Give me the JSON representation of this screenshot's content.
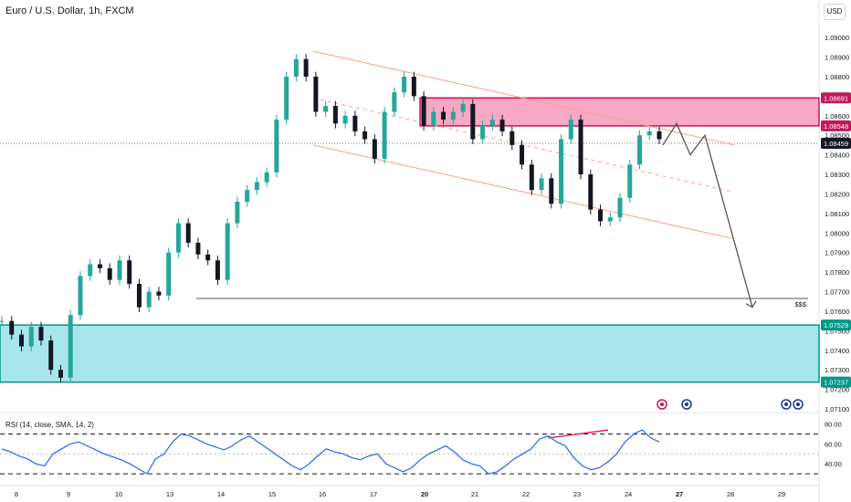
{
  "header": {
    "title": "Euro / U.S. Dollar, 1h, FXCM",
    "currency": "USD"
  },
  "indicator": {
    "label": "RSI (14, close, SMA, 14, 2)"
  },
  "annotation": {
    "liquidity_label": "$$$"
  },
  "colors": {
    "candle_up": "#26a69a",
    "candle_down": "#131722",
    "supply_zone": "#f7a8c4",
    "supply_border": "#c2185b",
    "demand_zone": "#a8e6ee",
    "demand_border": "#009688",
    "channel": "#f4a38c",
    "rsi_line": "#2962ff",
    "divergence_line": "#e91e63",
    "projection": "#555555"
  },
  "chart_data": [
    {
      "type": "candlestick",
      "title": "Euro / U.S. Dollar, 1h, FXCM",
      "ylim": [
        1.071,
        1.0908
      ],
      "y_ticks": [
        "1.09000",
        "1.08900",
        "1.08800",
        "1.08700",
        "1.08600",
        "1.08500",
        "1.08400",
        "1.08300",
        "1.08200",
        "1.08100",
        "1.08000",
        "1.07900",
        "1.07800",
        "1.07700",
        "1.07600",
        "1.07500",
        "1.07400",
        "1.07300",
        "1.07200",
        "1.07100"
      ],
      "x_ticks": [
        "8",
        "9",
        "10",
        "13",
        "14",
        "15",
        "16",
        "17",
        "20",
        "21",
        "22",
        "23",
        "24",
        "27",
        "28",
        "29"
      ],
      "x_ticks_bold": [
        "20",
        "27"
      ],
      "price_tags": [
        {
          "value": "1.08691",
          "color": "#c2185b"
        },
        {
          "value": "1.08548",
          "color": "#c2185b"
        },
        {
          "value": "1.08459",
          "color": "#131722"
        },
        {
          "value": "1.07529",
          "color": "#009688"
        },
        {
          "value": "1.07237",
          "color": "#009688"
        }
      ],
      "current_price": 1.08459,
      "zones": [
        {
          "name": "supply",
          "from_x": "20",
          "top": 1.08691,
          "bottom": 1.08548
        },
        {
          "name": "demand",
          "from_x": "8",
          "top": 1.07529,
          "bottom": 1.07237
        }
      ],
      "liquidity_level": 1.07665,
      "close_path": [
        [
          "8",
          1.0755
        ],
        [
          "8",
          1.0748
        ],
        [
          "8",
          1.0742
        ],
        [
          "8",
          1.0752
        ],
        [
          "9",
          1.0745
        ],
        [
          "9",
          1.073
        ],
        [
          "9",
          1.0726
        ],
        [
          "9",
          1.0758
        ],
        [
          "9",
          1.0778
        ],
        [
          "10",
          1.0784
        ],
        [
          "10",
          1.0782
        ],
        [
          "10",
          1.0776
        ],
        [
          "10",
          1.0786
        ],
        [
          "10",
          1.0774
        ],
        [
          "10",
          1.0762
        ],
        [
          "13",
          1.077
        ],
        [
          "13",
          1.0768
        ],
        [
          "13",
          1.079
        ],
        [
          "13",
          1.0805
        ],
        [
          "13",
          1.0795
        ],
        [
          "14",
          1.0789
        ],
        [
          "14",
          1.0786
        ],
        [
          "14",
          1.0776
        ],
        [
          "14",
          1.0805
        ],
        [
          "14",
          1.0816
        ],
        [
          "15",
          1.0822
        ],
        [
          "15",
          1.0826
        ],
        [
          "15",
          1.0831
        ],
        [
          "15",
          1.0858
        ],
        [
          "15",
          1.088
        ],
        [
          "16",
          1.0889
        ],
        [
          "16",
          1.088
        ],
        [
          "16",
          1.0862
        ],
        [
          "16",
          1.0865
        ],
        [
          "16",
          1.0856
        ],
        [
          "17",
          1.086
        ],
        [
          "17",
          1.0852
        ],
        [
          "17",
          1.0848
        ],
        [
          "17",
          1.0838
        ],
        [
          "17",
          1.0862
        ],
        [
          "17",
          1.0872
        ],
        [
          "20",
          1.088
        ],
        [
          "20",
          1.087
        ],
        [
          "20",
          1.0855
        ],
        [
          "20",
          1.0862
        ],
        [
          "20",
          1.0858
        ],
        [
          "21",
          1.0862
        ],
        [
          "21",
          1.0866
        ],
        [
          "21",
          1.0848
        ],
        [
          "21",
          1.0855
        ],
        [
          "22",
          1.0858
        ],
        [
          "22",
          1.0852
        ],
        [
          "22",
          1.0845
        ],
        [
          "22",
          1.0835
        ],
        [
          "23",
          1.0822
        ],
        [
          "23",
          1.0828
        ],
        [
          "23",
          1.0815
        ],
        [
          "23",
          1.0848
        ],
        [
          "23",
          1.0858
        ],
        [
          "23",
          1.083
        ],
        [
          "23",
          1.0812
        ],
        [
          "24",
          1.0806
        ],
        [
          "24",
          1.0808
        ],
        [
          "24",
          1.0818
        ],
        [
          "24",
          1.0835
        ],
        [
          "24",
          1.085
        ],
        [
          "24",
          1.0852
        ],
        [
          "24",
          1.0848
        ]
      ],
      "channel": {
        "upper": [
          [
            "16",
            1.0893
          ],
          [
            "27",
            1.0845
          ]
        ],
        "lower": [
          [
            "16",
            1.0845
          ],
          [
            "27",
            1.0797
          ]
        ],
        "mid_dashed": [
          [
            "16",
            1.0869
          ],
          [
            "27",
            1.0821
          ]
        ]
      },
      "projection_path": [
        [
          "24",
          1.0845
        ],
        [
          "24",
          1.0856
        ],
        [
          "27",
          1.084
        ],
        [
          "27",
          1.085
        ],
        [
          "27",
          1.0762
        ]
      ]
    },
    {
      "type": "line",
      "title": "RSI (14, close, SMA, 14, 2)",
      "ylim": [
        20,
        86
      ],
      "y_ticks": [
        "80.00",
        "60.00",
        "40.00"
      ],
      "levels": [
        70,
        50,
        30
      ],
      "series": [
        {
          "name": "RSI",
          "values": [
            55,
            52,
            48,
            45,
            40,
            38,
            50,
            55,
            60,
            62,
            58,
            54,
            50,
            47,
            44,
            40,
            35,
            30,
            45,
            50,
            62,
            70,
            68,
            64,
            60,
            57,
            54,
            58,
            64,
            68,
            62,
            56,
            50,
            44,
            38,
            34,
            40,
            48,
            55,
            52,
            50,
            46,
            44,
            48,
            50,
            40,
            36,
            32,
            36,
            44,
            50,
            54,
            58,
            52,
            44,
            40,
            38,
            30,
            32,
            38,
            45,
            50,
            55,
            65,
            68,
            62,
            58,
            46,
            38,
            34,
            36,
            42,
            50,
            62,
            70,
            74,
            66,
            62
          ]
        }
      ],
      "divergence_line": [
        [
          64,
          66
        ],
        [
          71,
          74
        ]
      ]
    }
  ]
}
